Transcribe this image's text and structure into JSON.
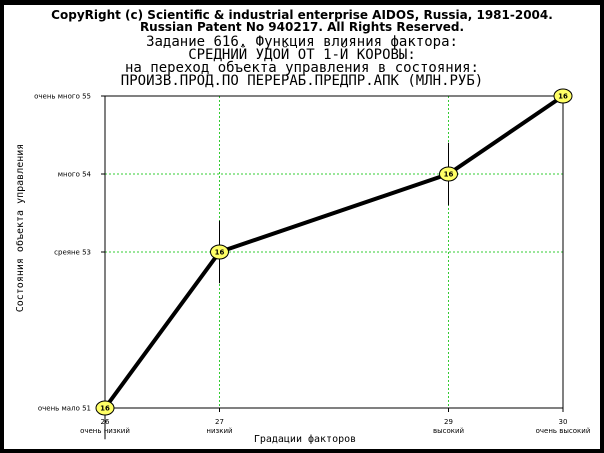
{
  "header": {
    "copyright": "CopyRight (c) Scientific & industrial enterprise AIDOS, Russia, 1981-2004.",
    "patent": "Russian Patent No 940217. All Rights Reserved."
  },
  "chart_data": {
    "type": "line",
    "title_lines": [
      "Задание 616. Функция влияния фактора:",
      "СРЕДНИЙ УДОЙ ОТ 1-Й КОРОВЫ:",
      "на переход объекта управления в состояния:",
      "ПРОИЗВ.ПРОД.ПО ПЕРЕРАБ.ПРЕДПР.АПК (МЛН.РУБ)"
    ],
    "xlabel": "Градации факторов",
    "ylabel": "Состояния объекта управления",
    "x_ticks": [
      {
        "value": 26,
        "label": "26",
        "sublabel": "очень низкий"
      },
      {
        "value": 27,
        "label": "27",
        "sublabel": "низкий"
      },
      {
        "value": 29,
        "label": "29",
        "sublabel": "высокий"
      },
      {
        "value": 30,
        "label": "30",
        "sublabel": "очень высокий"
      }
    ],
    "y_ticks": [
      {
        "value": 51,
        "label": "очень мало 51"
      },
      {
        "value": 53,
        "label": "среяне 53"
      },
      {
        "value": 54,
        "label": "много 54"
      },
      {
        "value": 55,
        "label": "очень много 55"
      }
    ],
    "xlim": [
      26,
      30
    ],
    "ylim": [
      51,
      55
    ],
    "grid": true,
    "points": [
      {
        "x": 26,
        "y": 51,
        "label": "16",
        "err_low": 50.6,
        "err_high": 51.4
      },
      {
        "x": 27,
        "y": 53,
        "label": "16",
        "err_low": 52.6,
        "err_high": 53.4
      },
      {
        "x": 29,
        "y": 54,
        "label": "16",
        "err_low": 53.6,
        "err_high": 54.4
      },
      {
        "x": 30,
        "y": 55,
        "label": "16",
        "err_low": 54.6,
        "err_high": 55.0
      }
    ],
    "colors": {
      "line": "#000000",
      "marker_fill": "#ffff66",
      "grid": "#33cc33"
    }
  }
}
